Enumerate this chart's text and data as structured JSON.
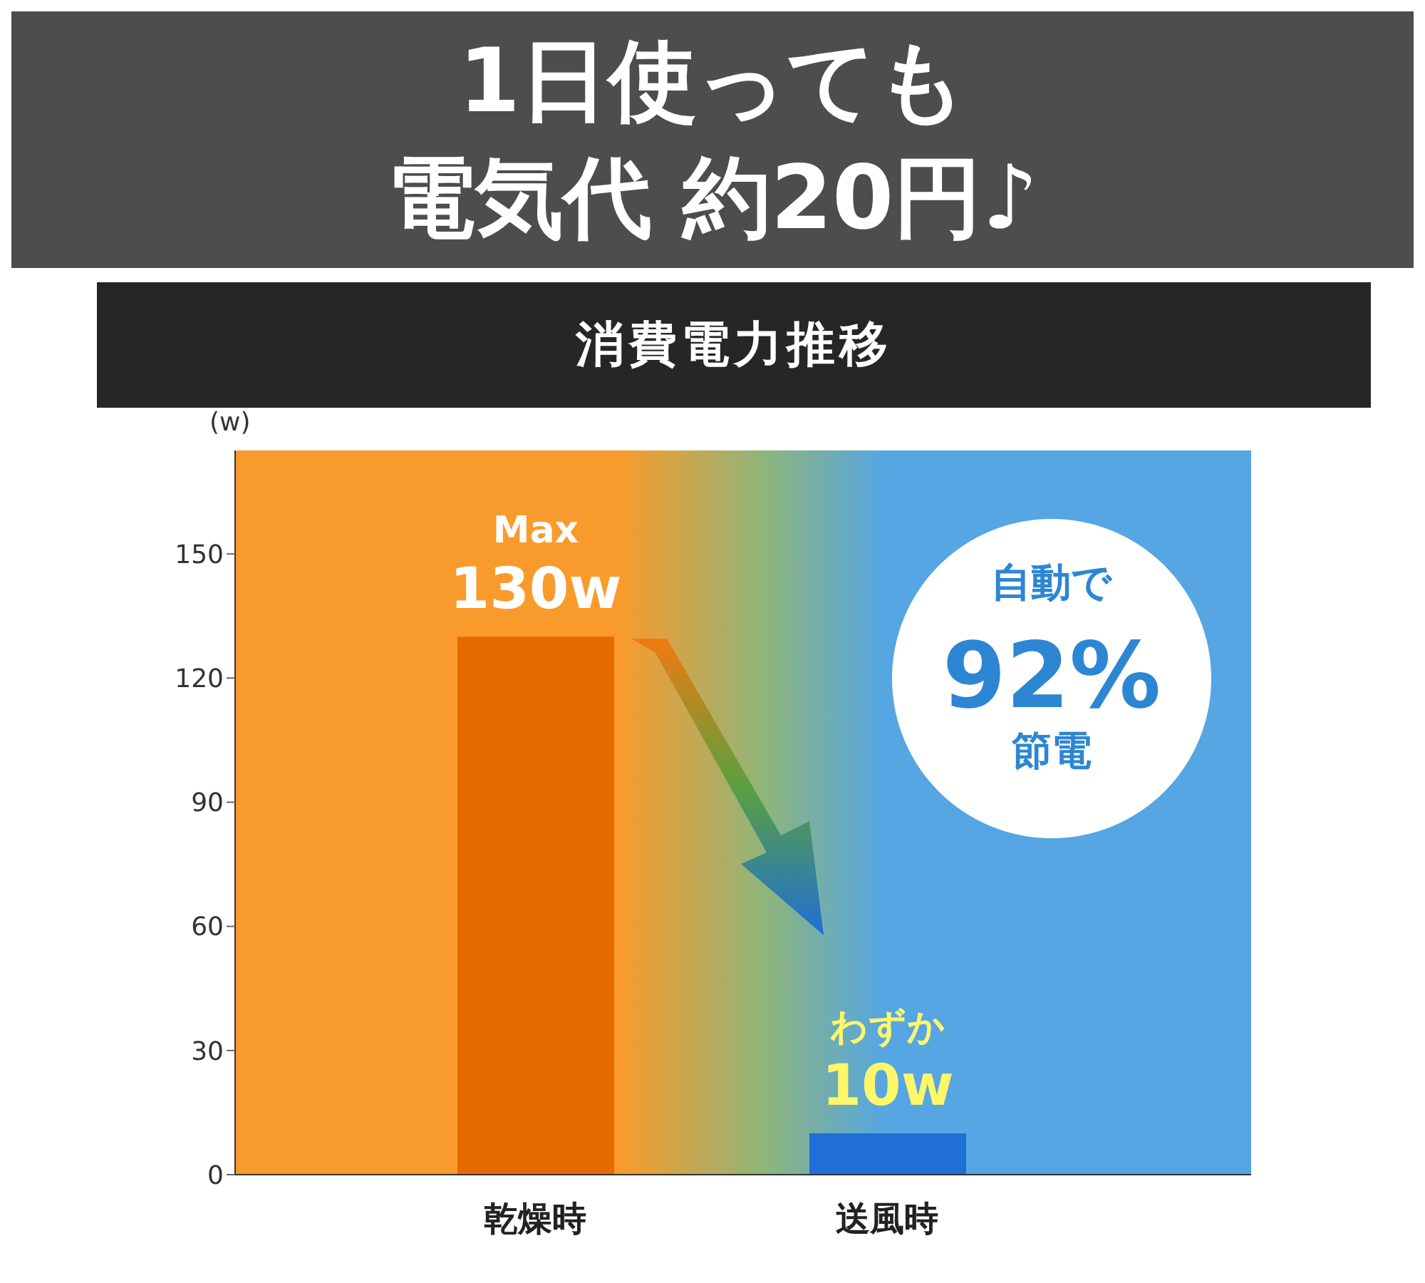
{
  "chart_data": {
    "type": "bar",
    "title": "1日使っても",
    "subtitle": "消費電力推移",
    "ylabel": "(w)",
    "categories": [
      "乾燥時",
      "送風時"
    ],
    "values": [
      130,
      10
    ],
    "colors": [
      "#e56a00",
      "#1f6fd6"
    ],
    "value_labels": [
      "Max\n130w",
      "わずか\n10w"
    ],
    "ylim": [
      0,
      175
    ],
    "yticks": [
      0,
      30,
      60,
      90,
      120,
      150
    ],
    "annotations": [
      "電気代 約20円♪",
      "自動で",
      "92%",
      "節電"
    ],
    "grid": false,
    "legend": false
  }
}
